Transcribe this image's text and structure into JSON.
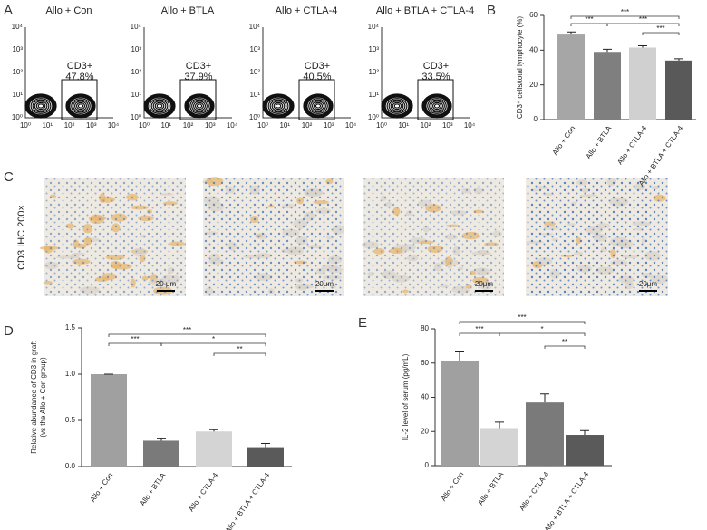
{
  "panel_labels": [
    "A",
    "B",
    "C",
    "D",
    "E"
  ],
  "flow_panels": [
    {
      "title": "Allo + Con",
      "gate_label": "CD3+",
      "percent": "47.8%"
    },
    {
      "title": "Allo + BTLA",
      "gate_label": "CD3+",
      "percent": "37.9%"
    },
    {
      "title": "Allo + CTLA-4",
      "gate_label": "CD3+",
      "percent": "40.5%"
    },
    {
      "title": "Allo + BTLA + CTLA-4",
      "gate_label": "CD3+",
      "percent": "33.5%"
    }
  ],
  "flow_axis_ticks": [
    "10⁰",
    "10¹",
    "10²",
    "10³",
    "10⁴"
  ],
  "ihc": {
    "row_label": "CD3 IHC 200×",
    "scale_bars": [
      "20 μm",
      "20μm",
      "20μm",
      "20μm"
    ]
  },
  "chart_data": [
    {
      "type": "bar",
      "ylabel": "CD3⁺ cells/total lymphocyte (%)",
      "categories": [
        "Allo + Con",
        "Allo + BTLA",
        "Allo + CTLA-4",
        "Allo + BTLA + CTLA-4"
      ],
      "values": [
        49,
        39,
        41.5,
        34
      ],
      "errors": [
        1.5,
        1.5,
        1,
        1
      ],
      "colors": [
        "#a6a6a6",
        "#7f7f7f",
        "#d0d0d0",
        "#595959"
      ],
      "ylim": [
        0,
        60
      ],
      "yticks": [
        0,
        20,
        40,
        60
      ],
      "annotations": [
        "***",
        "***",
        "***",
        "***"
      ]
    },
    {
      "type": "bar",
      "ylabel": [
        "Relative abundance of CD3 in graft",
        "(vs the Allo + Con group)"
      ],
      "categories": [
        "Allo + Con",
        "Allo + BTLA",
        "Allo + CTLA-4",
        "Allo + BTLA + CTLA-4"
      ],
      "values": [
        1.0,
        0.28,
        0.38,
        0.21
      ],
      "errors": [
        0,
        0.02,
        0.02,
        0.04
      ],
      "colors": [
        "#a0a0a0",
        "#7a7a7a",
        "#d4d4d4",
        "#5a5a5a"
      ],
      "ylim": [
        0,
        1.5
      ],
      "yticks": [
        {
          "value": 0,
          "label": "0.0"
        },
        {
          "value": 0.5,
          "label": "0.5"
        },
        {
          "value": 1,
          "label": "1.0"
        },
        {
          "value": 1.5,
          "label": "1.5"
        }
      ],
      "annotations": [
        "***",
        "***",
        "*",
        "**"
      ]
    },
    {
      "type": "bar",
      "ylabel": "IL-2 level of serum (pg/mL)",
      "categories": [
        "Allo + Con",
        "Allo + BTLA",
        "Allo + CTLA-4",
        "Allo + BTLA + CTLA-4"
      ],
      "values": [
        61,
        22,
        37,
        18
      ],
      "errors": [
        6,
        3.5,
        5,
        2.5
      ],
      "colors": [
        "#a0a0a0",
        "#d4d4d4",
        "#7a7a7a",
        "#5a5a5a"
      ],
      "ylim": [
        0,
        80
      ],
      "yticks": [
        0,
        20,
        40,
        60,
        80
      ],
      "annotations": [
        "***",
        "***",
        "*",
        "**"
      ]
    }
  ]
}
